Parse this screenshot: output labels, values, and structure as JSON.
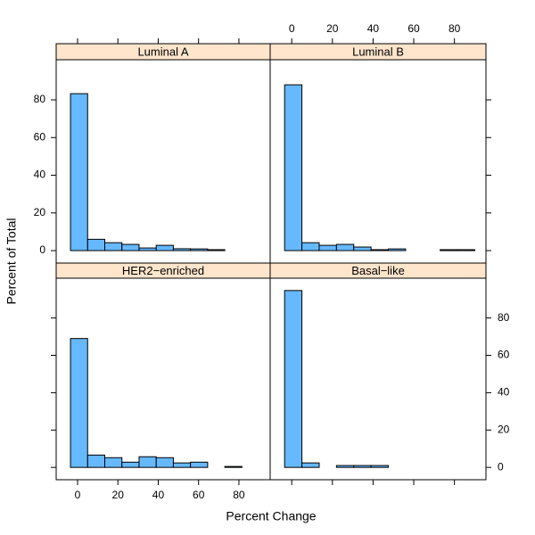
{
  "ylabel": "Percent of Total",
  "xlabel": "Percent Change",
  "chart_data": [
    {
      "type": "histogram",
      "title": "Luminal A",
      "color": "#66b8ff",
      "bins": [
        -3.5,
        5,
        13.5,
        22,
        30.5,
        39,
        47.5,
        56,
        64.5,
        73,
        81.5,
        90
      ],
      "values": [
        83.3,
        6.0,
        4.2,
        3.3,
        1.4,
        2.8,
        1.0,
        0.9,
        0.5,
        0,
        0
      ],
      "xlim": [
        -10.6,
        95.5
      ],
      "xticks": [
        0,
        20,
        40,
        60,
        80
      ],
      "ylim": [
        -6.6,
        101.3
      ],
      "yticks": [
        0,
        20,
        40,
        60,
        80
      ]
    },
    {
      "type": "histogram",
      "title": "Luminal B",
      "color": "#66b8ff",
      "bins": [
        -3.5,
        5,
        13.5,
        22,
        30.5,
        39,
        47.5,
        56,
        64.5,
        73,
        81.5,
        90
      ],
      "values": [
        88.0,
        4.2,
        2.8,
        3.3,
        1.9,
        0.5,
        0.9,
        0,
        0,
        0.5,
        0.5
      ],
      "xlim": [
        -10.6,
        95.5
      ],
      "xticks": [
        0,
        20,
        40,
        60,
        80
      ],
      "ylim": [
        -6.6,
        101.3
      ],
      "yticks": [
        0,
        20,
        40,
        60,
        80
      ]
    },
    {
      "type": "histogram",
      "title": "HER2−enriched",
      "color": "#66b8ff",
      "bins": [
        -3.5,
        5,
        13.5,
        22,
        30.5,
        39,
        47.5,
        56,
        64.5,
        73,
        81.5,
        90
      ],
      "values": [
        69.0,
        6.6,
        5.2,
        2.8,
        5.7,
        5.2,
        2.4,
        2.8,
        0,
        0.5,
        0
      ],
      "xlim": [
        -10.6,
        95.5
      ],
      "xticks": [
        0,
        20,
        40,
        60,
        80
      ],
      "ylim": [
        -6.6,
        101.3
      ],
      "yticks": [
        0,
        20,
        40,
        60,
        80
      ]
    },
    {
      "type": "histogram",
      "title": "Basal−like",
      "color": "#66b8ff",
      "bins": [
        -3.5,
        5,
        13.5,
        22,
        30.5,
        39,
        47.5,
        56,
        64.5,
        73,
        81.5,
        90
      ],
      "values": [
        94.7,
        2.4,
        0,
        1.0,
        1.0,
        1.0,
        0,
        0,
        0,
        0,
        0
      ],
      "xlim": [
        -10.6,
        95.5
      ],
      "xticks": [
        0,
        20,
        40,
        60,
        80
      ],
      "ylim": [
        -6.6,
        101.3
      ],
      "yticks": [
        0,
        20,
        40,
        60,
        80
      ]
    }
  ]
}
